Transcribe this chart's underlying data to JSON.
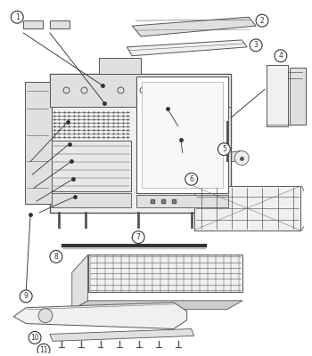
{
  "bg_color": "#ffffff",
  "line_color": "#555555",
  "dark_color": "#333333",
  "light_fill": "#f0f0f0",
  "mid_fill": "#e0e0e0",
  "dark_fill": "#cccccc"
}
